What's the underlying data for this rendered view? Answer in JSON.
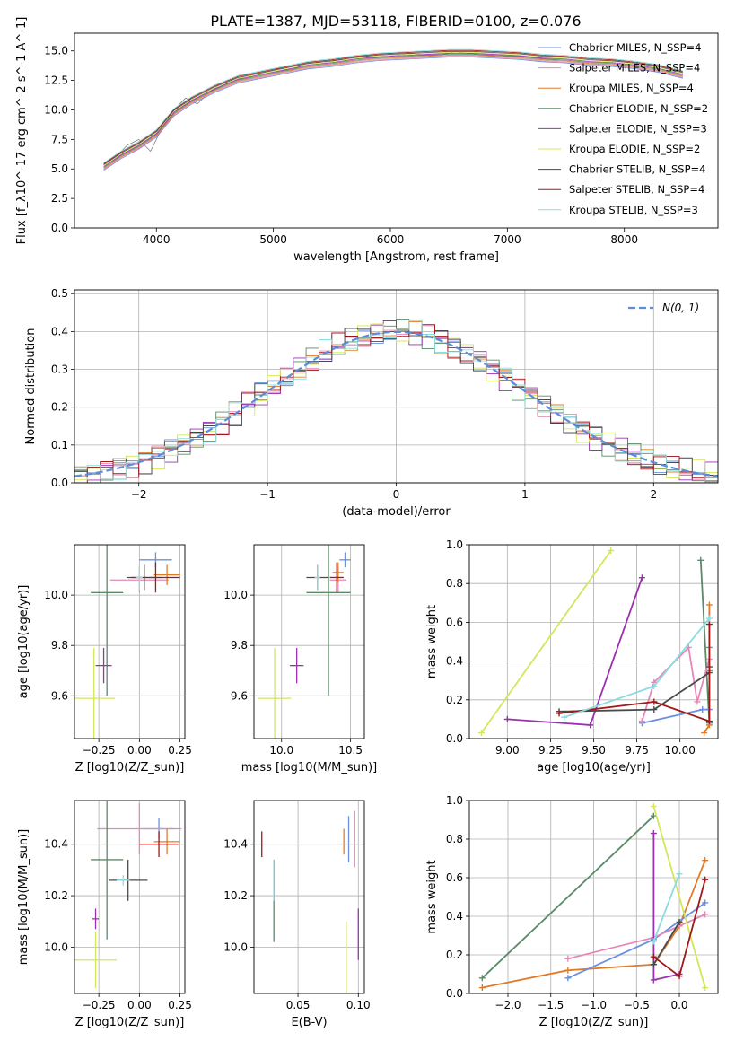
{
  "figure_title": "PLATE=1387, MJD=53118, FIBERID=0100, z=0.076",
  "colors": {
    "chabrier_miles": "#6a8fe0",
    "salpeter_miles": "#e687b8",
    "kroupa_miles": "#e07b2a",
    "chabrier_elodie": "#5a8a68",
    "salpeter_elodie": "#9b30b0",
    "kroupa_elodie": "#d4e65a",
    "chabrier_stelib": "#4a4a4a",
    "salpeter_stelib": "#a01818",
    "kroupa_stelib": "#8adde0",
    "data": "#808080"
  },
  "chart_data": [
    {
      "id": "spectrum",
      "type": "line",
      "xlabel": "wavelength [Angstrom, rest frame]",
      "ylabel": "Flux [f_λ10^-17 erg cm^-2 s^-1 A^-1]",
      "xlim": [
        3300,
        8800
      ],
      "ylim": [
        0,
        16.5
      ],
      "xticks": [
        4000,
        5000,
        6000,
        7000,
        8000
      ],
      "yticks": [
        0.0,
        2.5,
        5.0,
        7.5,
        10.0,
        12.5,
        15.0
      ],
      "grid": false,
      "legend_placement": "right",
      "legend": [
        {
          "label": "Chabrier MILES, N_SSP=4",
          "key": "chabrier_miles"
        },
        {
          "label": "Salpeter MILES, N_SSP=4",
          "key": "salpeter_miles"
        },
        {
          "label": "Kroupa MILES, N_SSP=4",
          "key": "kroupa_miles"
        },
        {
          "label": "Chabrier ELODIE, N_SSP=2",
          "key": "chabrier_elodie"
        },
        {
          "label": "Salpeter ELODIE, N_SSP=3",
          "key": "salpeter_elodie"
        },
        {
          "label": "Kroupa ELODIE, N_SSP=2",
          "key": "kroupa_elodie"
        },
        {
          "label": "Chabrier STELIB, N_SSP=4",
          "key": "chabrier_stelib"
        },
        {
          "label": "Salpeter STELIB, N_SSP=4",
          "key": "salpeter_stelib"
        },
        {
          "label": "Kroupa STELIB, N_SSP=3",
          "key": "kroupa_stelib"
        }
      ],
      "data_series": {
        "x": [
          3550,
          3650,
          3750,
          3850,
          3950,
          4050,
          4150,
          4250,
          4350,
          4450,
          4550,
          4650,
          4750,
          4850,
          4950,
          5050,
          5150,
          5250,
          5350,
          5450,
          5550,
          5650,
          5750,
          5850,
          5950,
          6050,
          6150,
          6250,
          6350,
          6450,
          6550,
          6650,
          6750,
          6850,
          6950,
          7050,
          7150,
          7250,
          7350,
          7420
        ],
        "y": [
          5.5,
          6.0,
          7.0,
          7.5,
          6.5,
          8.5,
          10.0,
          11.0,
          10.5,
          11.5,
          12.0,
          12.5,
          12.8,
          13.0,
          13.2,
          13.5,
          13.3,
          13.8,
          14.0,
          14.0,
          14.2,
          14.3,
          14.5,
          14.4,
          14.5,
          14.6,
          14.8,
          14.7,
          14.6,
          14.7,
          14.9,
          14.8,
          14.7,
          14.6,
          14.5,
          14.6,
          14.5,
          14.4,
          14.3,
          14.2
        ]
      },
      "model_series": {
        "x": [
          3550,
          3700,
          3850,
          4000,
          4150,
          4300,
          4500,
          4700,
          4900,
          5100,
          5300,
          5500,
          5700,
          5900,
          6100,
          6300,
          6500,
          6700,
          6900,
          7100,
          7300,
          7500,
          7700,
          7900,
          8100,
          8300,
          8500
        ],
        "y": [
          5.2,
          6.2,
          7.0,
          8.0,
          9.8,
          10.8,
          11.8,
          12.6,
          13.0,
          13.4,
          13.8,
          14.0,
          14.3,
          14.5,
          14.6,
          14.7,
          14.8,
          14.8,
          14.7,
          14.6,
          14.4,
          14.3,
          14.1,
          14.0,
          13.8,
          13.5,
          13.0
        ]
      }
    },
    {
      "id": "residuals",
      "type": "line",
      "xlabel": "(data-model)/error",
      "ylabel": "Normed distribution",
      "xlim": [
        -2.5,
        2.5
      ],
      "ylim": [
        0,
        0.51
      ],
      "xticks": [
        -2,
        -1,
        0,
        1,
        2
      ],
      "yticks": [
        0.0,
        0.1,
        0.2,
        0.3,
        0.4,
        0.5
      ],
      "grid": true,
      "legend_placement": "top-right",
      "legend": [
        {
          "label": "N(0, 1)",
          "style": "dashed"
        }
      ]
    },
    {
      "id": "age_vs_Z",
      "type": "scatter",
      "xlabel": "Z [log10(Z/Z_sun)]",
      "ylabel": "age [log10(age/yr)]",
      "xlim": [
        -0.4,
        0.28
      ],
      "ylim": [
        9.43,
        10.2
      ],
      "xticks": [
        -0.25,
        0.0,
        0.25
      ],
      "yticks": [
        9.6,
        9.8,
        10.0
      ],
      "grid": true,
      "points": [
        {
          "key": "chabrier_miles",
          "x": 0.1,
          "y": 10.14,
          "xerr": 0.1,
          "yerr": 0.03
        },
        {
          "key": "salpeter_miles",
          "x": 0.0,
          "y": 10.06,
          "xerr": 0.18,
          "yerr": 0.05
        },
        {
          "key": "kroupa_miles",
          "x": 0.17,
          "y": 10.08,
          "xerr": 0.08,
          "yerr": 0.04
        },
        {
          "key": "chabrier_elodie",
          "x": -0.2,
          "y": 10.01,
          "xerr": 0.1,
          "yerr": 0.41
        },
        {
          "key": "salpeter_elodie",
          "x": -0.22,
          "y": 9.72,
          "xerr": 0.05,
          "yerr": 0.07
        },
        {
          "key": "kroupa_elodie",
          "x": -0.28,
          "y": 9.59,
          "xerr": 0.13,
          "yerr": 0.2
        },
        {
          "key": "chabrier_stelib",
          "x": 0.03,
          "y": 10.07,
          "xerr": 0.11,
          "yerr": 0.05
        },
        {
          "key": "salpeter_stelib",
          "x": 0.1,
          "y": 10.07,
          "xerr": 0.15,
          "yerr": 0.06
        },
        {
          "key": "kroupa_stelib",
          "x": 0.0,
          "y": 10.07,
          "xerr": 0.02,
          "yerr": 0.05
        }
      ]
    },
    {
      "id": "age_vs_mass",
      "type": "scatter",
      "xlabel": "mass [log10(M/M_sun)]",
      "ylabel": "",
      "xlim": [
        9.8,
        10.6
      ],
      "ylim": [
        9.43,
        10.2
      ],
      "xticks": [
        10.0,
        10.5
      ],
      "yticks": [
        9.6,
        9.8,
        10.0
      ],
      "grid": true,
      "points": [
        {
          "key": "chabrier_miles",
          "x": 10.46,
          "y": 10.14,
          "xerr": 0.04,
          "yerr": 0.03
        },
        {
          "key": "salpeter_miles",
          "x": 10.41,
          "y": 10.06,
          "xerr": 0.06,
          "yerr": 0.05
        },
        {
          "key": "kroupa_miles",
          "x": 10.41,
          "y": 10.09,
          "xerr": 0.04,
          "yerr": 0.04
        },
        {
          "key": "chabrier_elodie",
          "x": 10.34,
          "y": 10.01,
          "xerr": 0.16,
          "yerr": 0.41
        },
        {
          "key": "salpeter_elodie",
          "x": 10.11,
          "y": 9.72,
          "xerr": 0.05,
          "yerr": 0.07
        },
        {
          "key": "kroupa_elodie",
          "x": 9.95,
          "y": 9.59,
          "xerr": 0.12,
          "yerr": 0.2
        },
        {
          "key": "chabrier_stelib",
          "x": 10.26,
          "y": 10.07,
          "xerr": 0.08,
          "yerr": 0.05
        },
        {
          "key": "salpeter_stelib",
          "x": 10.4,
          "y": 10.07,
          "xerr": 0.05,
          "yerr": 0.06
        },
        {
          "key": "kroupa_stelib",
          "x": 10.26,
          "y": 10.07,
          "xerr": 0.02,
          "yerr": 0.05
        }
      ]
    },
    {
      "id": "massweight_vs_age",
      "type": "line",
      "xlabel": "age [log10(age/yr)]",
      "ylabel": "mass weight",
      "xlim": [
        8.78,
        10.22
      ],
      "ylim": [
        0.0,
        1.0
      ],
      "xticks": [
        9.0,
        9.25,
        9.5,
        9.75,
        10.0
      ],
      "yticks": [
        0.0,
        0.2,
        0.4,
        0.6,
        0.8,
        1.0
      ],
      "grid": true,
      "series": [
        {
          "key": "kroupa_elodie",
          "x": [
            8.85,
            9.6
          ],
          "y": [
            0.03,
            0.97
          ]
        },
        {
          "key": "salpeter_elodie",
          "x": [
            9.0,
            9.48,
            9.78
          ],
          "y": [
            0.1,
            0.07,
            0.83
          ]
        },
        {
          "key": "chabrier_elodie",
          "x": [
            10.12,
            10.17
          ],
          "y": [
            0.92,
            0.08
          ]
        },
        {
          "key": "chabrier_miles",
          "x": [
            9.78,
            10.13,
            10.17,
            10.17
          ],
          "y": [
            0.08,
            0.15,
            0.15,
            0.47
          ]
        },
        {
          "key": "kroupa_miles",
          "x": [
            10.14,
            10.17,
            10.17,
            10.17
          ],
          "y": [
            0.03,
            0.07,
            0.35,
            0.69
          ]
        },
        {
          "key": "salpeter_miles",
          "x": [
            9.78,
            9.85,
            10.05,
            10.1,
            10.17
          ],
          "y": [
            0.09,
            0.29,
            0.47,
            0.19,
            0.41
          ]
        },
        {
          "key": "chabrier_stelib",
          "x": [
            9.3,
            9.85,
            10.17,
            10.17
          ],
          "y": [
            0.14,
            0.15,
            0.34,
            0.37
          ]
        },
        {
          "key": "salpeter_stelib",
          "x": [
            9.3,
            9.85,
            10.17,
            10.17
          ],
          "y": [
            0.13,
            0.19,
            0.09,
            0.59
          ]
        },
        {
          "key": "kroupa_stelib",
          "x": [
            9.33,
            9.85,
            10.17
          ],
          "y": [
            0.11,
            0.27,
            0.62
          ]
        }
      ]
    },
    {
      "id": "mass_vs_Z",
      "type": "scatter",
      "xlabel": "Z [log10(Z/Z_sun)]",
      "ylabel": "mass [log10(M/M_sun)]",
      "xlim": [
        -0.4,
        0.28
      ],
      "ylim": [
        9.82,
        10.57
      ],
      "xticks": [
        -0.25,
        0.0,
        0.25
      ],
      "yticks": [
        10.0,
        10.2,
        10.4
      ],
      "grid": true,
      "points": [
        {
          "key": "chabrier_miles",
          "x": 0.12,
          "y": 10.46,
          "xerr": 0.1,
          "yerr": 0.04
        },
        {
          "key": "salpeter_miles",
          "x": 0.0,
          "y": 10.46,
          "xerr": 0.26,
          "yerr": 0.1
        },
        {
          "key": "kroupa_miles",
          "x": 0.17,
          "y": 10.41,
          "xerr": 0.08,
          "yerr": 0.05
        },
        {
          "key": "chabrier_elodie",
          "x": -0.2,
          "y": 10.34,
          "xerr": 0.1,
          "yerr": 0.31
        },
        {
          "key": "salpeter_elodie",
          "x": -0.27,
          "y": 10.11,
          "xerr": 0.02,
          "yerr": 0.04
        },
        {
          "key": "kroupa_elodie",
          "x": -0.27,
          "y": 9.95,
          "xerr": 0.13,
          "yerr": 0.11
        },
        {
          "key": "chabrier_stelib",
          "x": -0.07,
          "y": 10.26,
          "xerr": 0.12,
          "yerr": 0.08
        },
        {
          "key": "salpeter_stelib",
          "x": 0.12,
          "y": 10.4,
          "xerr": 0.12,
          "yerr": 0.05
        },
        {
          "key": "kroupa_stelib",
          "x": -0.1,
          "y": 10.26,
          "xerr": 0.04,
          "yerr": 0.02
        }
      ]
    },
    {
      "id": "mass_vs_ebv",
      "type": "scatter",
      "xlabel": "E(B-V)",
      "ylabel": "",
      "xlim": [
        0.0135,
        0.105
      ],
      "ylim": [
        9.82,
        10.57
      ],
      "xticks": [
        0.05,
        0.1
      ],
      "yticks": [
        10.0,
        10.2,
        10.4
      ],
      "grid": true,
      "points": [
        {
          "key": "chabrier_miles",
          "x": 0.092,
          "y": 10.42,
          "xerr": 0.0,
          "yerr": 0.09
        },
        {
          "key": "salpeter_miles",
          "x": 0.097,
          "y": 10.42,
          "xerr": 0.0,
          "yerr": 0.11
        },
        {
          "key": "kroupa_miles",
          "x": 0.088,
          "y": 10.41,
          "xerr": 0.0,
          "yerr": 0.05
        },
        {
          "key": "chabrier_elodie",
          "x": 0.03,
          "y": 10.18,
          "xerr": 0.0,
          "yerr": 0.16
        },
        {
          "key": "salpeter_elodie",
          "x": 0.1,
          "y": 10.05,
          "xerr": 0.0,
          "yerr": 0.1
        },
        {
          "key": "kroupa_elodie",
          "x": 0.09,
          "y": 9.95,
          "xerr": 0.0,
          "yerr": 0.15
        },
        {
          "key": "chabrier_stelib",
          "x": 0.03,
          "y": 10.26,
          "xerr": 0.0,
          "yerr": 0.08
        },
        {
          "key": "salpeter_stelib",
          "x": 0.02,
          "y": 10.4,
          "xerr": 0.0,
          "yerr": 0.05
        },
        {
          "key": "kroupa_stelib",
          "x": 0.03,
          "y": 10.26,
          "xerr": 0.0,
          "yerr": 0.08
        }
      ]
    },
    {
      "id": "massweight_vs_Z",
      "type": "line",
      "xlabel": "Z [log10(Z/Z_sun)]",
      "ylabel": "mass weight",
      "xlim": [
        -2.45,
        0.45
      ],
      "ylim": [
        0.0,
        1.0
      ],
      "xticks": [
        -2.0,
        -1.5,
        -1.0,
        -0.5,
        0.0
      ],
      "yticks": [
        0.0,
        0.2,
        0.4,
        0.6,
        0.8,
        1.0
      ],
      "grid": true,
      "series": [
        {
          "key": "chabrier_elodie",
          "x": [
            -2.3,
            -0.3
          ],
          "y": [
            0.08,
            0.92
          ]
        },
        {
          "key": "kroupa_miles",
          "x": [
            -2.3,
            -1.3,
            -0.3,
            0.0,
            0.3
          ],
          "y": [
            0.03,
            0.12,
            0.15,
            0.35,
            0.69
          ]
        },
        {
          "key": "chabrier_miles",
          "x": [
            -1.3,
            -0.3,
            0.3
          ],
          "y": [
            0.08,
            0.28,
            0.47
          ]
        },
        {
          "key": "salpeter_miles",
          "x": [
            -1.3,
            -0.3,
            0.3
          ],
          "y": [
            0.18,
            0.29,
            0.41
          ]
        },
        {
          "key": "kroupa_elodie",
          "x": [
            -0.3,
            0.3
          ],
          "y": [
            0.97,
            0.03
          ]
        },
        {
          "key": "salpeter_elodie",
          "x": [
            -0.3,
            -0.3,
            0.0
          ],
          "y": [
            0.83,
            0.07,
            0.1
          ]
        },
        {
          "key": "kroupa_stelib",
          "x": [
            -0.3,
            0.0
          ],
          "y": [
            0.27,
            0.62
          ]
        },
        {
          "key": "chabrier_stelib",
          "x": [
            -0.3,
            0.0
          ],
          "y": [
            0.15,
            0.37
          ]
        },
        {
          "key": "salpeter_stelib",
          "x": [
            -0.3,
            0.0,
            0.3
          ],
          "y": [
            0.19,
            0.09,
            0.59
          ]
        }
      ]
    }
  ]
}
